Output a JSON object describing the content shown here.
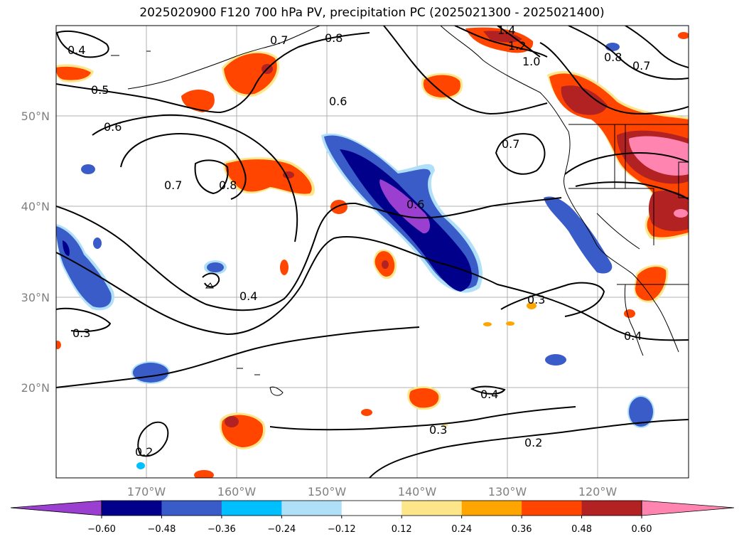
{
  "map": {
    "title": "2025020900 F120 700 hPa PV, precipitation PC (2025021300 - 2025021400)",
    "lat_labels": [
      "50°N",
      "40°N",
      "30°N",
      "20°N"
    ],
    "lon_labels": [
      "170°W",
      "160°W",
      "150°W",
      "140°W",
      "130°W",
      "120°W"
    ],
    "contour_labels": [
      "0.4",
      "0.5",
      "0.6",
      "0.7",
      "0.8",
      "0.6",
      "0.7",
      "0.8",
      "1.4",
      "1.2",
      "1.0",
      "0.8",
      "0.7",
      "0.7",
      "0.6",
      "0.4",
      "0.3",
      "0.3",
      "0.4",
      "0.4",
      "0.3",
      "0.2",
      "0.2"
    ],
    "colorbar": {
      "ticks": [
        "−0.60",
        "−0.48",
        "−0.36",
        "−0.24",
        "−0.12",
        "0.12",
        "0.24",
        "0.36",
        "0.48",
        "0.60"
      ],
      "colors": [
        "#9b3fd0",
        "#00008b",
        "#3a5cc9",
        "#00bfff",
        "#b0e0f8",
        "#ffffff",
        "#fde68a",
        "#ffa500",
        "#ff4500",
        "#b22222",
        "#ff85b0",
        "#ff85b0"
      ]
    }
  }
}
